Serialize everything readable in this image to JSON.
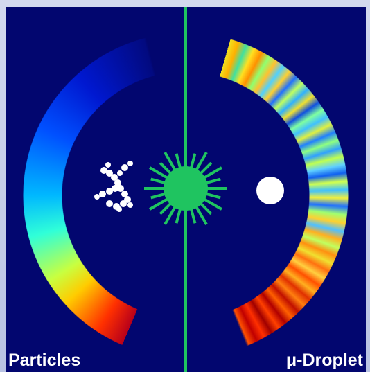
{
  "labels": {
    "left": "Particles",
    "right": "μ-Droplet"
  }
}
